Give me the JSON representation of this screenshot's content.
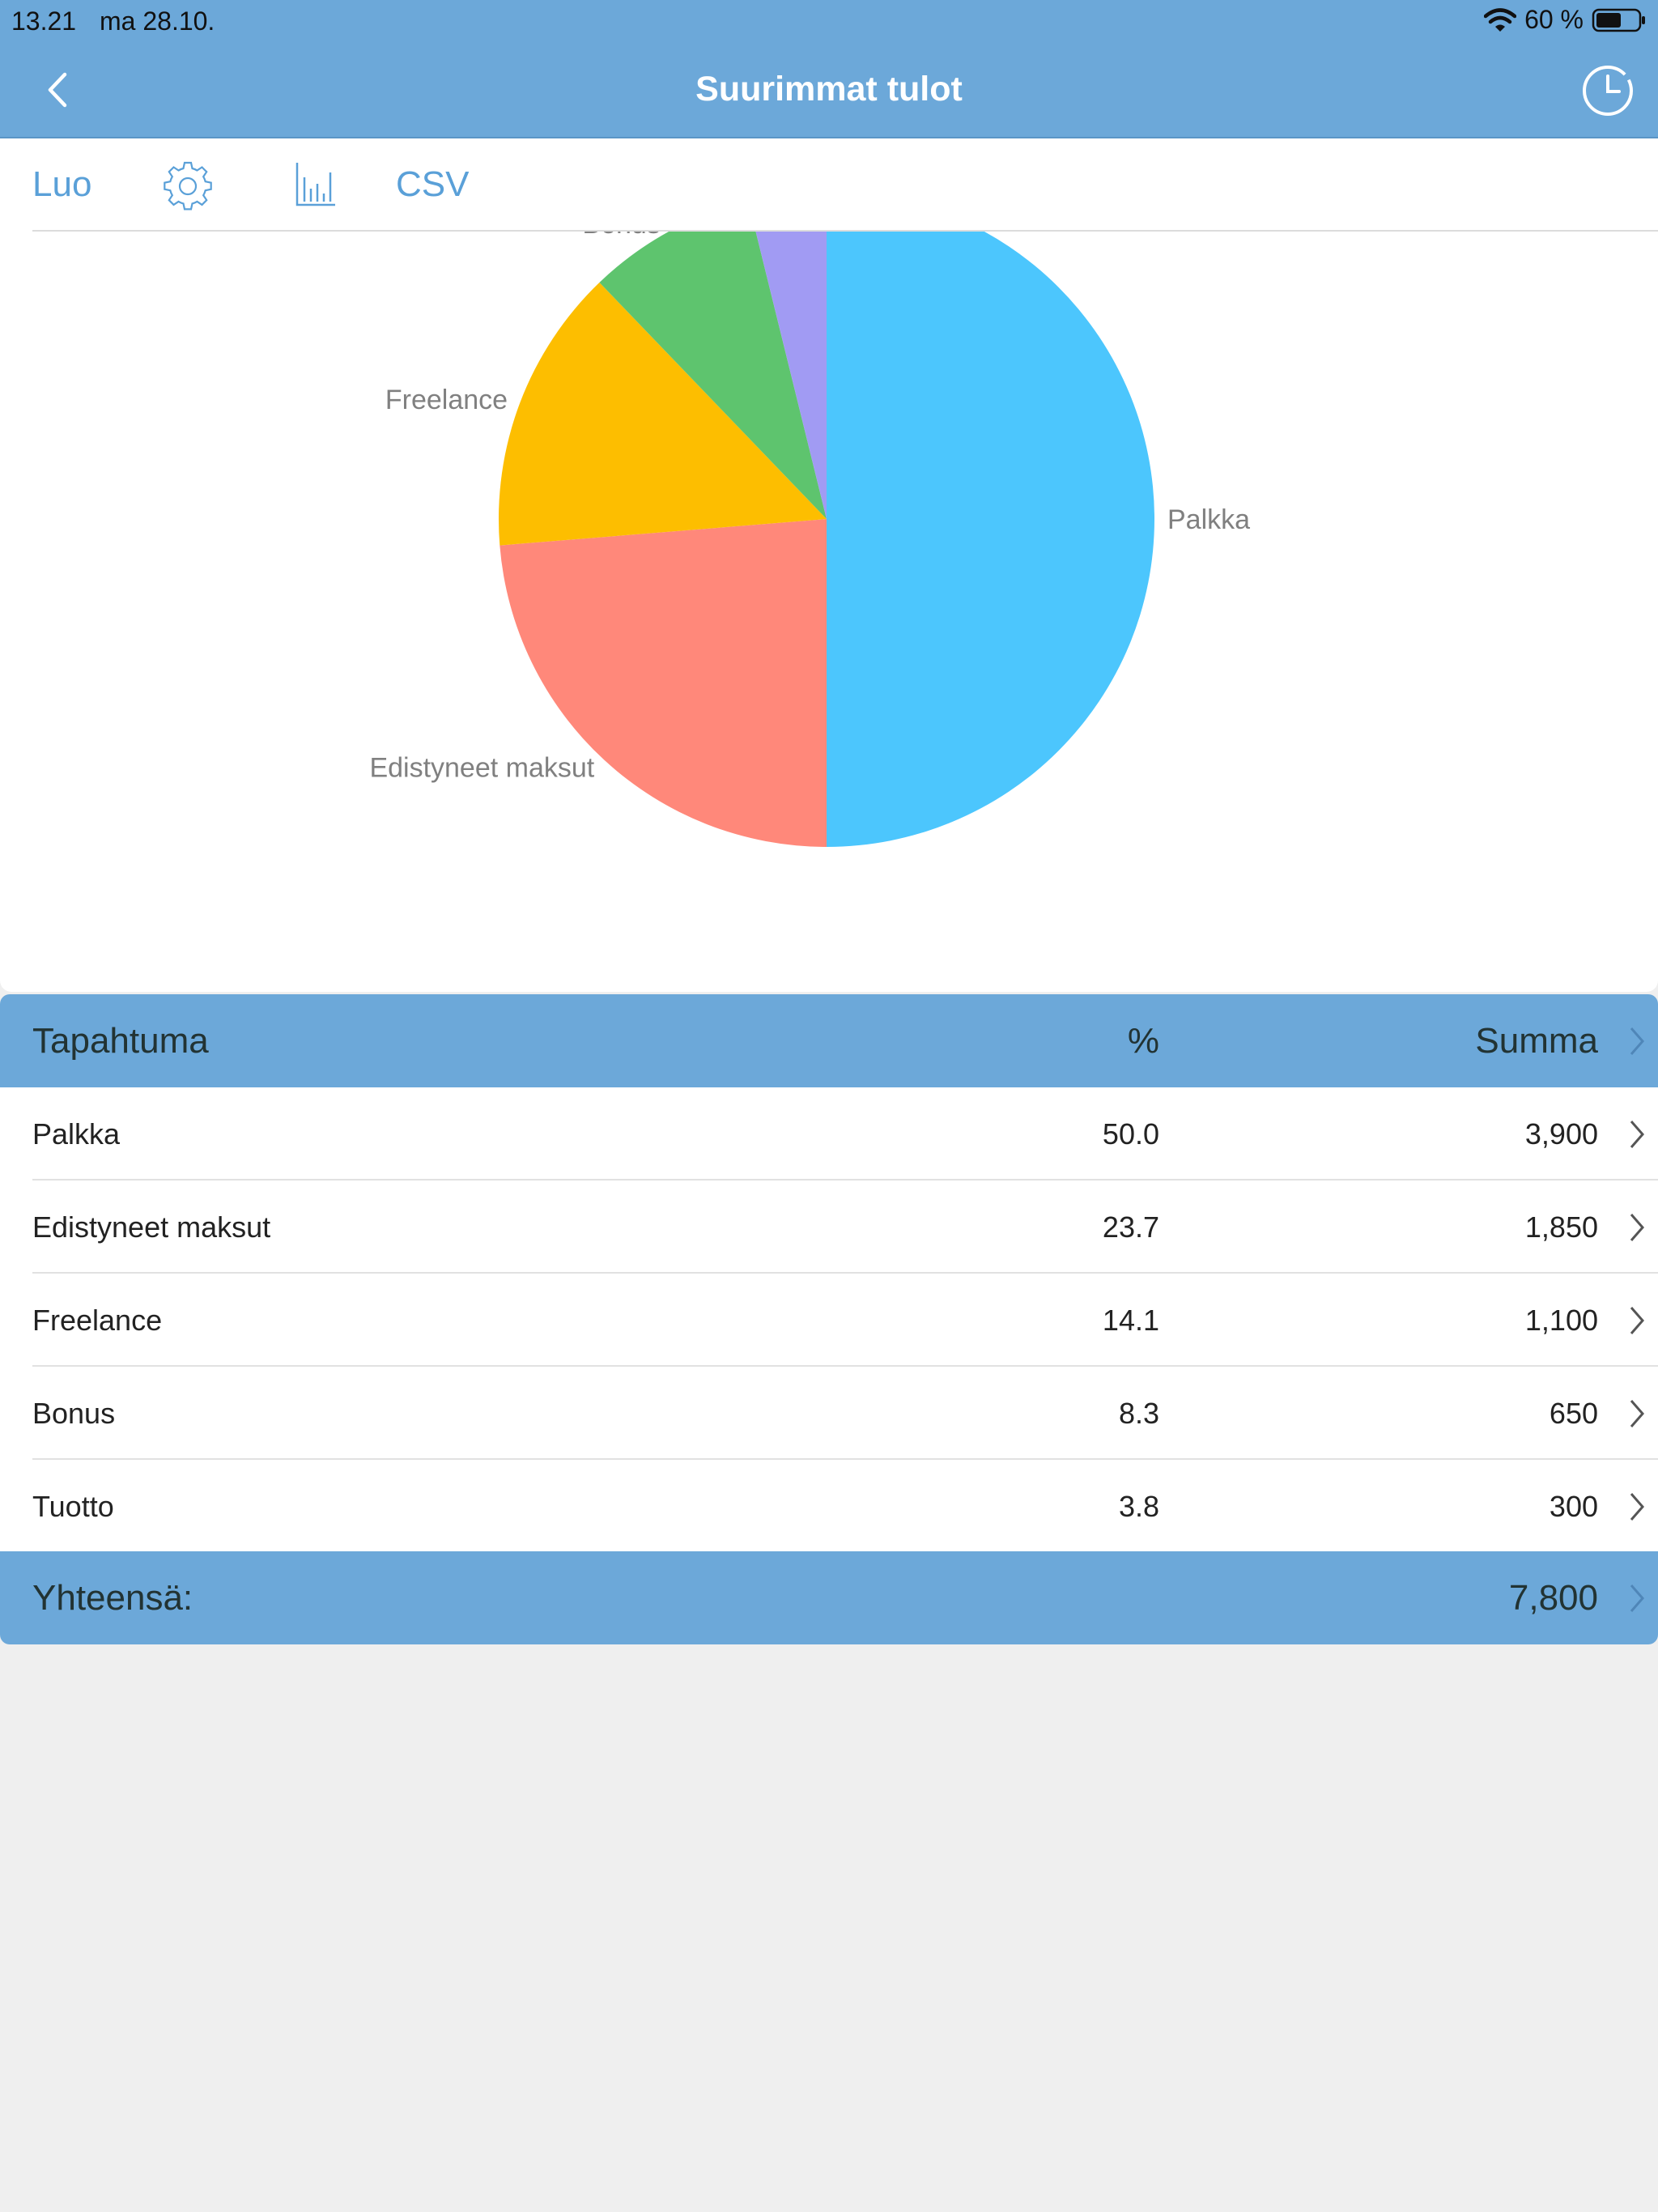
{
  "status_bar": {
    "time": "13.21",
    "date": "ma 28.10.",
    "battery": "60 %",
    "wifi_icon": "wifi-icon",
    "battery_icon": "battery-icon"
  },
  "nav": {
    "title": "Suurimmat tulot",
    "back_icon": "chevron-left-icon",
    "history_icon": "clock-icon"
  },
  "toolbar": {
    "create_label": "Luo",
    "settings_icon": "gear-icon",
    "chart_icon": "bar-chart-icon",
    "csv_label": "CSV"
  },
  "colors": {
    "accent": "#6ca8d9",
    "link": "#5aa0d8",
    "slice_colors": [
      "#4cc6fd",
      "#ff887a",
      "#fdbe00",
      "#5ec46e",
      "#a19bf3"
    ]
  },
  "chart_data": {
    "type": "pie",
    "categories": [
      "Palkka",
      "Edistyneet maksut",
      "Freelance",
      "Bonus",
      "Tuotto"
    ],
    "values": [
      3900,
      1850,
      1100,
      650,
      300
    ],
    "percent": [
      50.0,
      23.7,
      14.1,
      8.3,
      3.8
    ],
    "title": "",
    "legend": "labels outside slices"
  },
  "table": {
    "header": {
      "name": "Tapahtuma",
      "pct": "%",
      "sum": "Summa"
    },
    "rows": [
      {
        "name": "Palkka",
        "pct": "50.0",
        "sum": "3,900"
      },
      {
        "name": "Edistyneet maksut",
        "pct": "23.7",
        "sum": "1,850"
      },
      {
        "name": "Freelance",
        "pct": "14.1",
        "sum": "1,100"
      },
      {
        "name": "Bonus",
        "pct": "8.3",
        "sum": "650"
      },
      {
        "name": "Tuotto",
        "pct": "3.8",
        "sum": "300"
      }
    ],
    "footer": {
      "label": "Yhteensä:",
      "total": "7,800"
    }
  }
}
